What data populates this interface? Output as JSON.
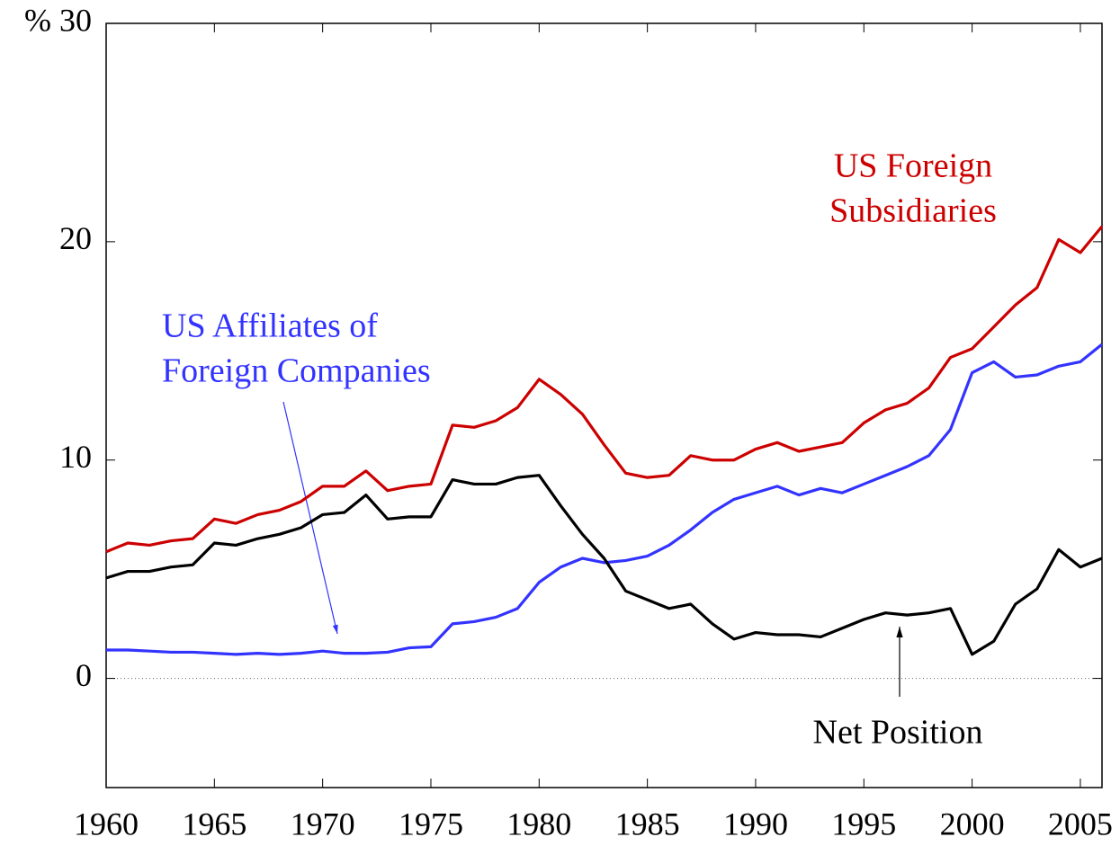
{
  "chart_data": {
    "type": "line",
    "x": [
      1960,
      1961,
      1962,
      1963,
      1964,
      1965,
      1966,
      1967,
      1968,
      1969,
      1970,
      1971,
      1972,
      1973,
      1974,
      1975,
      1976,
      1977,
      1978,
      1979,
      1980,
      1981,
      1982,
      1983,
      1984,
      1985,
      1986,
      1987,
      1988,
      1989,
      1990,
      1991,
      1992,
      1993,
      1994,
      1995,
      1996,
      1997,
      1998,
      1999,
      2000,
      2001,
      2002,
      2003,
      2004,
      2005,
      2006
    ],
    "series": [
      {
        "color": "#cc0000",
        "values": [
          5.8,
          6.2,
          6.1,
          6.3,
          6.4,
          7.3,
          7.1,
          7.5,
          7.7,
          8.1,
          8.8,
          8.8,
          9.5,
          8.6,
          8.8,
          8.9,
          11.6,
          11.5,
          11.8,
          12.4,
          13.7,
          13.0,
          12.1,
          10.7,
          9.4,
          9.2,
          9.3,
          10.2,
          10.0,
          10.0,
          10.5,
          10.8,
          10.4,
          10.6,
          10.8,
          11.7,
          12.3,
          12.6,
          13.3,
          14.7,
          15.1,
          16.1,
          17.1,
          17.9,
          20.1,
          19.5,
          20.7
        ]
      },
      {
        "color": "#3333ff",
        "values": [
          1.3,
          1.3,
          1.25,
          1.2,
          1.2,
          1.15,
          1.1,
          1.15,
          1.1,
          1.15,
          1.25,
          1.15,
          1.15,
          1.2,
          1.4,
          1.45,
          2.5,
          2.6,
          2.8,
          3.2,
          4.4,
          5.1,
          5.5,
          5.3,
          5.4,
          5.6,
          6.1,
          6.8,
          7.6,
          8.2,
          8.5,
          8.8,
          8.4,
          8.7,
          8.5,
          8.9,
          9.3,
          9.7,
          10.2,
          11.4,
          14.0,
          14.5,
          13.8,
          13.9,
          14.3,
          14.5,
          15.3
        ]
      },
      {
        "color": "#000000",
        "values": [
          4.6,
          4.9,
          4.9,
          5.1,
          5.2,
          6.2,
          6.1,
          6.4,
          6.6,
          6.9,
          7.5,
          7.6,
          8.4,
          7.3,
          7.4,
          7.4,
          9.1,
          8.9,
          8.9,
          9.2,
          9.3,
          7.9,
          6.6,
          5.5,
          4.0,
          3.6,
          3.2,
          3.4,
          2.5,
          1.8,
          2.1,
          2.0,
          2.0,
          1.9,
          2.3,
          2.7,
          3.0,
          2.9,
          3.0,
          3.2,
          1.1,
          1.7,
          3.4,
          4.1,
          5.9,
          5.1,
          5.5
        ]
      }
    ],
    "annotations": [
      {
        "lines": [
          "US Foreign",
          "Subsidiaries"
        ],
        "color": "#cc0000"
      },
      {
        "lines": [
          "US Affiliates of",
          "Foreign Companies"
        ],
        "color": "#3333ff"
      },
      {
        "lines": [
          "Net Position"
        ],
        "color": "#000000"
      }
    ],
    "xlim": [
      1960,
      2006
    ],
    "xticks": [
      1960,
      1965,
      1970,
      1975,
      1980,
      1985,
      1990,
      1995,
      2000,
      2005
    ],
    "ylim": [
      -5,
      30
    ],
    "yticks": [
      0,
      10,
      20,
      {
        "value": 30,
        "label": "% 30"
      }
    ],
    "zero_line": true
  }
}
